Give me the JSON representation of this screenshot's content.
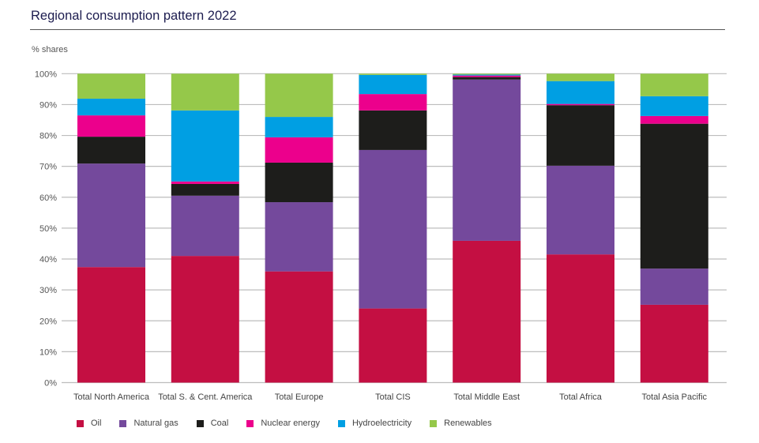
{
  "chart_data": {
    "type": "bar",
    "stacked": true,
    "title": "Regional consumption pattern 2022",
    "ylabel": "% shares",
    "xlabel": "",
    "ylim": [
      0,
      100
    ],
    "yticks": [
      0,
      10,
      20,
      30,
      40,
      50,
      60,
      70,
      80,
      90,
      100
    ],
    "ytick_labels": [
      "0%",
      "10%",
      "20%",
      "30%",
      "40%",
      "50%",
      "60%",
      "70%",
      "80%",
      "90%",
      "100%"
    ],
    "grid": true,
    "legend_position": "bottom-left",
    "categories": [
      "Total North America",
      "Total S. & Cent. America",
      "Total Europe",
      "Total CIS",
      "Total Middle East",
      "Total Africa",
      "Total Asia Pacific"
    ],
    "series": [
      {
        "name": "Oil",
        "color": "#c40f42",
        "values": [
          37.4,
          41.0,
          36.0,
          24.0,
          45.9,
          41.5,
          25.2
        ]
      },
      {
        "name": "Natural gas",
        "color": "#74499c",
        "values": [
          33.5,
          19.5,
          22.4,
          51.3,
          52.2,
          28.7,
          11.7
        ]
      },
      {
        "name": "Coal",
        "color": "#1d1d1b",
        "values": [
          8.7,
          3.8,
          12.8,
          12.8,
          0.8,
          19.6,
          46.9
        ]
      },
      {
        "name": "Nuclear energy",
        "color": "#ec008c",
        "values": [
          6.9,
          0.8,
          8.2,
          5.3,
          0.5,
          0.4,
          2.5
        ]
      },
      {
        "name": "Hydroelectricity",
        "color": "#009fe3",
        "values": [
          5.4,
          23.0,
          6.6,
          6.2,
          0.3,
          7.4,
          6.4
        ]
      },
      {
        "name": "Renewables",
        "color": "#95c84a",
        "values": [
          8.1,
          11.9,
          14.0,
          0.4,
          0.3,
          2.4,
          7.3
        ]
      }
    ]
  }
}
